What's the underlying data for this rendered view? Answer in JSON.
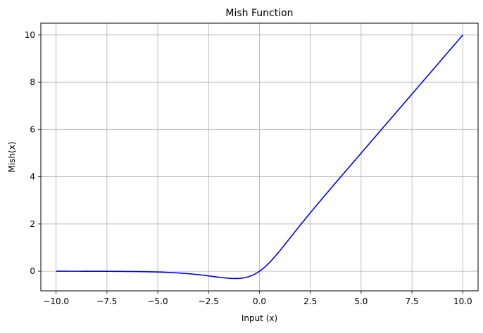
{
  "chart_data": {
    "type": "line",
    "title": "Mish Function",
    "xlabel": "Input (x)",
    "ylabel": "Mish(x)",
    "xlim": [
      -10.75,
      10.75
    ],
    "ylim": [
      -0.83,
      10.5
    ],
    "xticks": [
      -10.0,
      -7.5,
      -5.0,
      -2.5,
      0.0,
      2.5,
      5.0,
      7.5,
      10.0
    ],
    "xtick_labels": [
      "−10.0",
      "−7.5",
      "−5.0",
      "−2.5",
      "0.0",
      "2.5",
      "5.0",
      "7.5",
      "10.0"
    ],
    "yticks": [
      0,
      2,
      4,
      6,
      8,
      10
    ],
    "ytick_labels": [
      "0",
      "2",
      "4",
      "6",
      "8",
      "10"
    ],
    "grid": true,
    "series": [
      {
        "color": "#0000ff",
        "function": "mish",
        "x_range": [
          -10,
          10
        ],
        "points": [
          [
            -10,
            -0.0005
          ],
          [
            -9,
            -0.0011
          ],
          [
            -8,
            -0.0027
          ],
          [
            -7,
            -0.0064
          ],
          [
            -6,
            -0.0148
          ],
          [
            -5,
            -0.0335
          ],
          [
            -4,
            -0.0726
          ],
          [
            -3,
            -0.1456
          ],
          [
            -2.5,
            -0.1936
          ],
          [
            -2,
            -0.2525
          ],
          [
            -1.5,
            -0.2996
          ],
          [
            -1.2,
            -0.3088
          ],
          [
            -1,
            -0.3034
          ],
          [
            -0.5,
            -0.2207
          ],
          [
            0,
            0
          ],
          [
            0.5,
            0.3751
          ],
          [
            1,
            0.8651
          ],
          [
            1.5,
            1.4033
          ],
          [
            2,
            1.944
          ],
          [
            2.5,
            2.4632
          ],
          [
            3,
            2.9865
          ],
          [
            4,
            3.9974
          ],
          [
            5,
            4.9996
          ],
          [
            6,
            6.0
          ],
          [
            8,
            8.0
          ],
          [
            10,
            10.0
          ]
        ]
      }
    ]
  }
}
